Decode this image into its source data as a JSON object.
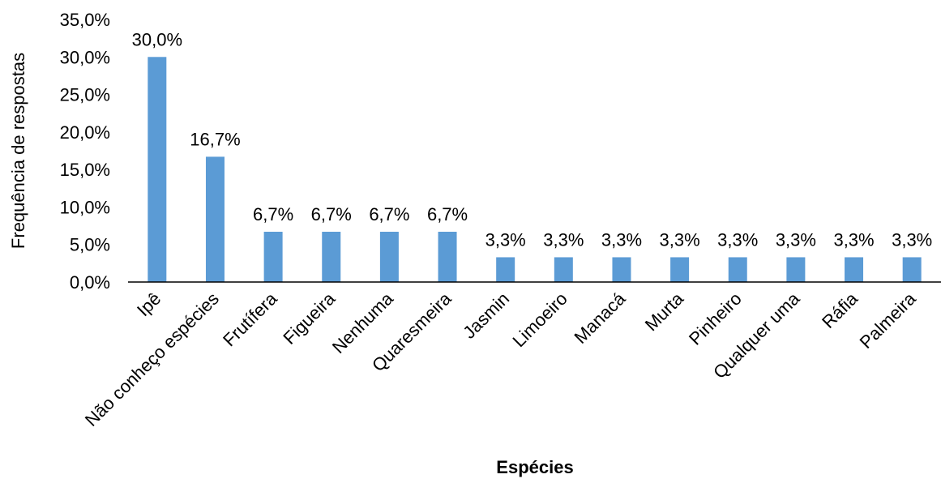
{
  "chart_data": {
    "type": "bar",
    "title": "",
    "xlabel": "Espécies",
    "ylabel": "Frequência de respostas",
    "ylim": [
      0,
      35
    ],
    "y_ticks": [
      "0,0%",
      "5,0%",
      "10,0%",
      "15,0%",
      "20,0%",
      "25,0%",
      "30,0%",
      "35,0%"
    ],
    "grid": false,
    "legend": "none",
    "bar_color": "#5b9bd5",
    "categories": [
      "Ipê",
      "Não conheço espécies",
      "Frutífera",
      "Figueira",
      "Nenhuma",
      "Quaresmeira",
      "Jasmin",
      "Limoeiro",
      "Manacá",
      "Murta",
      "Pinheiro",
      "Qualquer uma",
      "Ráfia",
      "Palmeira"
    ],
    "values": [
      30.0,
      16.7,
      6.7,
      6.7,
      6.7,
      6.7,
      3.3,
      3.3,
      3.3,
      3.3,
      3.3,
      3.3,
      3.3,
      3.3
    ],
    "value_labels": [
      "30,0%",
      "16,7%",
      "6,7%",
      "6,7%",
      "6,7%",
      "6,7%",
      "3,3%",
      "3,3%",
      "3,3%",
      "3,3%",
      "3,3%",
      "3,3%",
      "3,3%",
      "3,3%"
    ]
  }
}
